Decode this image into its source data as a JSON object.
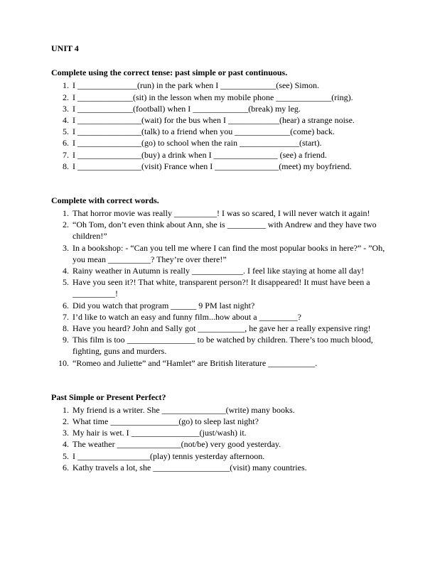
{
  "heading": "UNIT 4",
  "section1": {
    "title": "Complete using the correct tense: past simple or past continuous.",
    "items": [
      "I ______________(run) in the park when I _____________(see) Simon.",
      "I _____________(sit) in the lesson when my mobile phone _____________(ring).",
      "I _____________(football) when I _____________(break) my leg.",
      "I _______________(wait) for the bus when I ____________(hear) a strange noise.",
      "I _______________(talk) to a friend when you _____________(come) back.",
      "I _______________(go) to school when the rain ______________(start).",
      "I _______________(buy) a drink when I _______________ (see) a friend.",
      "I _______________(visit) France when I _______________(meet) my boyfriend."
    ]
  },
  "section2": {
    "title": "Complete with correct words.",
    "items": [
      "That horror movie was really __________! I was so scared, I will never watch it again!",
      "“Oh Tom, don’t even think about Ann, she is _________ with Andrew and they have two children!”",
      "In a bookshop: - “Can you tell me where I can find the most popular books in here?” - ”Oh, you mean __________? They’re over there!”",
      "Rainy weather in Autumn is really ____________. I feel like staying at home all day!",
      "Have you seen it?! That white, transparent person?! It disappeared! It must have been a __________!",
      "Did you watch that program ______ 9 PM last night?",
      "I’d like to watch an easy and funny film...how about a _________?",
      "Have you heard? John and Sally got ___________, he gave her a really expensive ring!",
      "This film is too ________________ to be watched by children. There’s too much blood, fighting, guns and murders.",
      "“Romeo and Juliette” and “Hamlet” are British literature ___________."
    ]
  },
  "section3": {
    "title": "Past Simple or Present Perfect?",
    "items": [
      "My friend is a writer. She _______________(write) many books.",
      "What time ________________(go) to sleep last night?",
      "My hair is wet. I ________________(just/wash) it.",
      "The weather _______________(not/be) very good yesterday.",
      "I _________________(play) tennis yesterday afternoon.",
      "Kathy travels a lot, she __________________(visit) many countries."
    ]
  }
}
